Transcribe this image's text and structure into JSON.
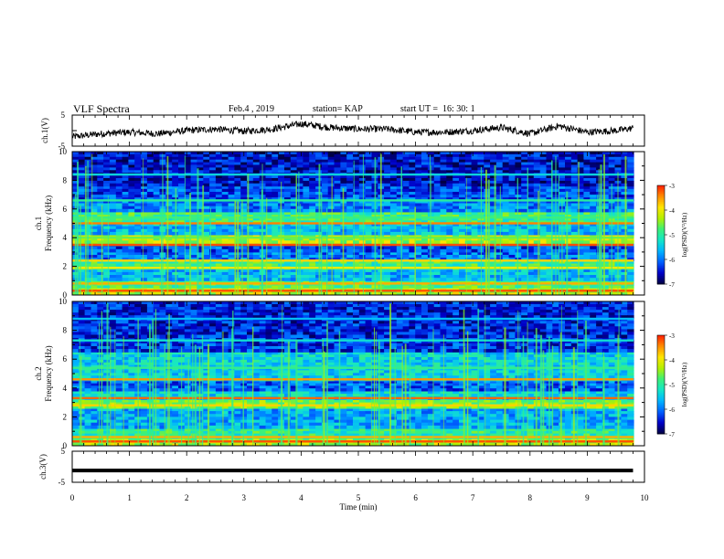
{
  "header": {
    "title": "VLF Spectra",
    "date": "Feb.4 , 2019",
    "station": "station= KAP",
    "start_ut": "start UT =  16: 30: 1"
  },
  "colors": {
    "waveform": "#000000",
    "colormap": [
      "#000040",
      "#0000c8",
      "#0060ff",
      "#00b4ff",
      "#14e6c8",
      "#3cf078",
      "#b4f000",
      "#ffe600",
      "#ff8c00",
      "#ff1e00",
      "#ffffff"
    ]
  },
  "chart_data": [
    {
      "type": "line",
      "name": "ch1-waveform",
      "ylabel": "ch.1(V)",
      "ylim": [
        -5,
        5
      ],
      "yticks": [
        "5",
        "-5"
      ],
      "x_range_min": [
        0,
        9.8
      ],
      "description_values": {
        "x_min": [
          0,
          0.5,
          1.0,
          1.5,
          2.0,
          2.5,
          3.0,
          3.5,
          4.0,
          4.5,
          5.0,
          5.5,
          6.0,
          6.5,
          7.0,
          7.5,
          8.0,
          8.5,
          9.0,
          9.5,
          9.8
        ],
        "y_volts": [
          -2.0,
          -1.0,
          -0.5,
          -1.0,
          0.0,
          0.5,
          -0.2,
          0.5,
          2.2,
          1.0,
          0.5,
          0.5,
          -0.5,
          -0.5,
          0.0,
          1.0,
          -1.0,
          1.5,
          -0.5,
          0.0,
          0.8
        ]
      }
    },
    {
      "type": "heatmap",
      "name": "ch1-spectrogram",
      "ylabel": "ch.1\nFrequency (kHz)",
      "ylim": [
        0,
        10
      ],
      "yticks": [
        "0",
        "2",
        "4",
        "6",
        "8",
        "10"
      ],
      "colorbar": {
        "label": "log(PSD)(V²/Hz)",
        "range": [
          -7,
          -3
        ],
        "ticks": [
          "-3",
          "-4",
          "-5",
          "-6",
          "-7"
        ]
      },
      "bands": [
        {
          "f_khz": [
            0.0,
            0.5
          ],
          "log_psd": -4.2
        },
        {
          "f_khz": [
            0.5,
            1.0
          ],
          "log_psd": -4.8
        },
        {
          "f_khz": [
            1.0,
            1.8
          ],
          "log_psd": -5.6
        },
        {
          "f_khz": [
            1.8,
            2.4
          ],
          "log_psd": -4.9
        },
        {
          "f_khz": [
            2.4,
            3.0
          ],
          "log_psd": -6.0
        },
        {
          "f_khz": [
            3.0,
            3.6
          ],
          "log_psd": -6.2
        },
        {
          "f_khz": [
            3.6,
            4.2
          ],
          "log_psd": -4.3
        },
        {
          "f_khz": [
            4.2,
            5.0
          ],
          "log_psd": -5.6
        },
        {
          "f_khz": [
            5.0,
            5.8
          ],
          "log_psd": -4.9
        },
        {
          "f_khz": [
            5.8,
            6.6
          ],
          "log_psd": -5.9
        },
        {
          "f_khz": [
            6.6,
            7.6
          ],
          "log_psd": -6.2
        },
        {
          "f_khz": [
            7.6,
            10.0
          ],
          "log_psd": -6.5
        }
      ],
      "lines_khz": [
        {
          "f": 0.3,
          "log_psd": -3.2
        },
        {
          "f": 0.8,
          "log_psd": -3.6
        },
        {
          "f": 1.9,
          "log_psd": -4.0
        },
        {
          "f": 2.4,
          "log_psd": -3.8
        },
        {
          "f": 3.5,
          "log_psd": -3.2
        },
        {
          "f": 4.0,
          "log_psd": -4.6
        },
        {
          "f": 5.0,
          "log_psd": -3.4
        },
        {
          "f": 5.4,
          "log_psd": -4.8
        },
        {
          "f": 6.6,
          "log_psd": -5.0
        },
        {
          "f": 8.4,
          "log_psd": -5.4
        }
      ]
    },
    {
      "type": "heatmap",
      "name": "ch2-spectrogram",
      "ylabel": "ch.2\nFrequency (kHz)",
      "ylim": [
        0,
        10
      ],
      "yticks": [
        "0",
        "2",
        "4",
        "6",
        "8",
        "10"
      ],
      "colorbar": {
        "label": "log(PSD)(V²/Hz)",
        "range": [
          -7,
          -3
        ],
        "ticks": [
          "-3",
          "-4",
          "-5",
          "-6",
          "-7"
        ]
      },
      "bands": [
        {
          "f_khz": [
            0.0,
            0.5
          ],
          "log_psd": -4.3
        },
        {
          "f_khz": [
            0.5,
            1.2
          ],
          "log_psd": -5.0
        },
        {
          "f_khz": [
            1.2,
            2.6
          ],
          "log_psd": -5.7
        },
        {
          "f_khz": [
            2.6,
            3.2
          ],
          "log_psd": -4.6
        },
        {
          "f_khz": [
            3.2,
            3.8
          ],
          "log_psd": -5.4
        },
        {
          "f_khz": [
            3.8,
            4.5
          ],
          "log_psd": -6.1
        },
        {
          "f_khz": [
            4.5,
            6.5
          ],
          "log_psd": -5.4
        },
        {
          "f_khz": [
            6.5,
            7.5
          ],
          "log_psd": -6.3
        },
        {
          "f_khz": [
            7.5,
            10.0
          ],
          "log_psd": -6.4
        }
      ],
      "lines_khz": [
        {
          "f": 0.3,
          "log_psd": -3.2
        },
        {
          "f": 0.6,
          "log_psd": -3.6
        },
        {
          "f": 2.8,
          "log_psd": -3.8
        },
        {
          "f": 3.3,
          "log_psd": -3.3
        },
        {
          "f": 4.6,
          "log_psd": -3.5
        },
        {
          "f": 5.4,
          "log_psd": -4.9
        },
        {
          "f": 7.3,
          "log_psd": -5.3
        },
        {
          "f": 8.8,
          "log_psd": -5.6
        }
      ]
    },
    {
      "type": "line",
      "name": "ch3-waveform",
      "ylabel": "ch.3(V)",
      "ylim": [
        -5,
        5
      ],
      "yticks": [
        "5",
        "-5"
      ],
      "constant_value_volts": -1.2,
      "x_range_min": [
        0,
        9.8
      ]
    }
  ],
  "xaxis": {
    "label": "Time (min)",
    "xlim": [
      0,
      10
    ],
    "ticks": [
      "0",
      "1",
      "2",
      "3",
      "4",
      "5",
      "6",
      "7",
      "8",
      "9",
      "10"
    ]
  }
}
